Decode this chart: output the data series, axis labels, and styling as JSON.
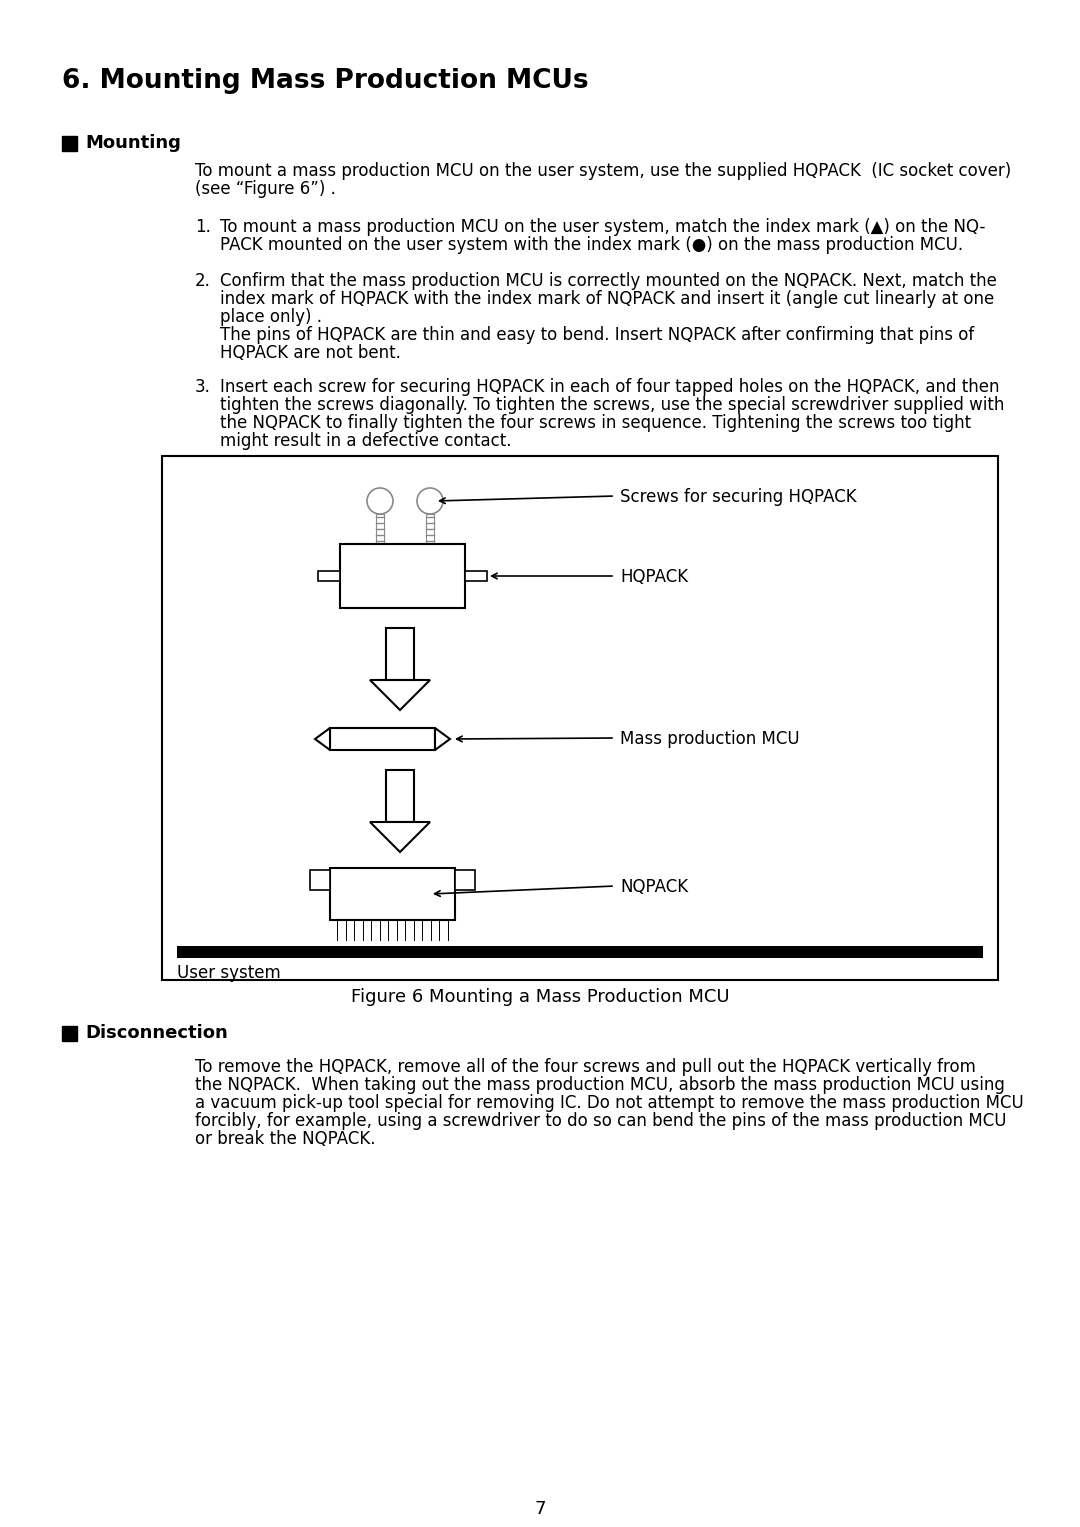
{
  "title": "6. Mounting Mass Production MCUs",
  "section1_header": "Mounting",
  "section1_intro_line1": "To mount a mass production MCU on the user system, use the supplied HQPACK  (IC socket cover)",
  "section1_intro_line2": "(see “Figure 6”) .",
  "item1_num": "1.",
  "item1_line1": "To mount a mass production MCU on the user system, match the index mark (▲) on the NQ-",
  "item1_line2": "PACK mounted on the user system with the index mark (●) on the mass production MCU.",
  "item2_num": "2.",
  "item2_line1": "Confirm that the mass production MCU is correctly mounted on the NQPACK. Next, match the",
  "item2_line2": "index mark of HQPACK with the index mark of NQPACK and insert it (angle cut linearly at one",
  "item2_line3": "place only) .",
  "item2_line4": "The pins of HQPACK are thin and easy to bend. Insert NQPACK after confirming that pins of",
  "item2_line5": "HQPACK are not bent.",
  "item3_num": "3.",
  "item3_line1": "Insert each screw for securing HQPACK in each of four tapped holes on the HQPACK, and then",
  "item3_line2": "tighten the screws diagonally. To tighten the screws, use the special screwdriver supplied with",
  "item3_line3": "the NQPACK to finally tighten the four screws in sequence. Tightening the screws too tight",
  "item3_line4": "might result in a defective contact.",
  "figure_caption": "Figure 6 Mounting a Mass Production MCU",
  "label_screws": "Screws for securing HQPACK",
  "label_hqpack": "HQPACK",
  "label_mcu": "Mass production MCU",
  "label_nqpack": "NQPACK",
  "label_user_system": "User system",
  "section2_header": "Disconnection",
  "section2_line1": "To remove the HQPACK, remove all of the four screws and pull out the HQPACK vertically from",
  "section2_line2": "the NQPACK.  When taking out the mass production MCU, absorb the mass production MCU using",
  "section2_line3": "a vacuum pick-up tool special for removing IC. Do not attempt to remove the mass production MCU",
  "section2_line4": "forcibly, for example, using a screwdriver to do so can bend the pins of the mass production MCU",
  "section2_line5": "or break the NQPACK.",
  "page_number": "7",
  "bg_color": "#ffffff",
  "text_color": "#000000"
}
